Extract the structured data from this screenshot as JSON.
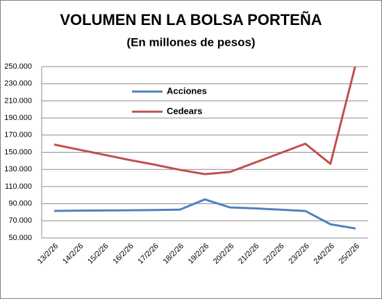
{
  "chart_data": {
    "type": "line",
    "title": "VOLUMEN EN LA BOLSA PORTEÑA",
    "subtitle": "(En millones de pesos)",
    "categories": [
      "13/2/26",
      "14/2/26",
      "15/2/26",
      "16/2/26",
      "17/2/26",
      "18/2/26",
      "19/2/26",
      "20/2/26",
      "21/2/26",
      "22/2/26",
      "23/2/26",
      "24/2/26",
      "25/2/26"
    ],
    "series": [
      {
        "name": "Acciones",
        "color": "#4f81bd",
        "values": [
          81600,
          81900,
          82100,
          82300,
          82600,
          83000,
          95000,
          85600,
          84500,
          83000,
          81500,
          66000,
          61000
        ]
      },
      {
        "name": "Cedears",
        "color": "#c0504d",
        "values": [
          159000,
          153000,
          147000,
          141000,
          135500,
          129500,
          124500,
          127000,
          138000,
          149000,
          160000,
          136500,
          252000
        ]
      }
    ],
    "ylim": [
      50000,
      250000
    ],
    "yticks": [
      {
        "value": 50000,
        "label": "50.000"
      },
      {
        "value": 70000,
        "label": "70.000"
      },
      {
        "value": 90000,
        "label": "90.000"
      },
      {
        "value": 110000,
        "label": "110.000"
      },
      {
        "value": 130000,
        "label": "130.000"
      },
      {
        "value": 150000,
        "label": "150.000"
      },
      {
        "value": 170000,
        "label": "170.000"
      },
      {
        "value": 190000,
        "label": "190.000"
      },
      {
        "value": 210000,
        "label": "210.000"
      },
      {
        "value": 230000,
        "label": "230.000"
      },
      {
        "value": 250000,
        "label": "250.000"
      }
    ],
    "grid": true
  }
}
